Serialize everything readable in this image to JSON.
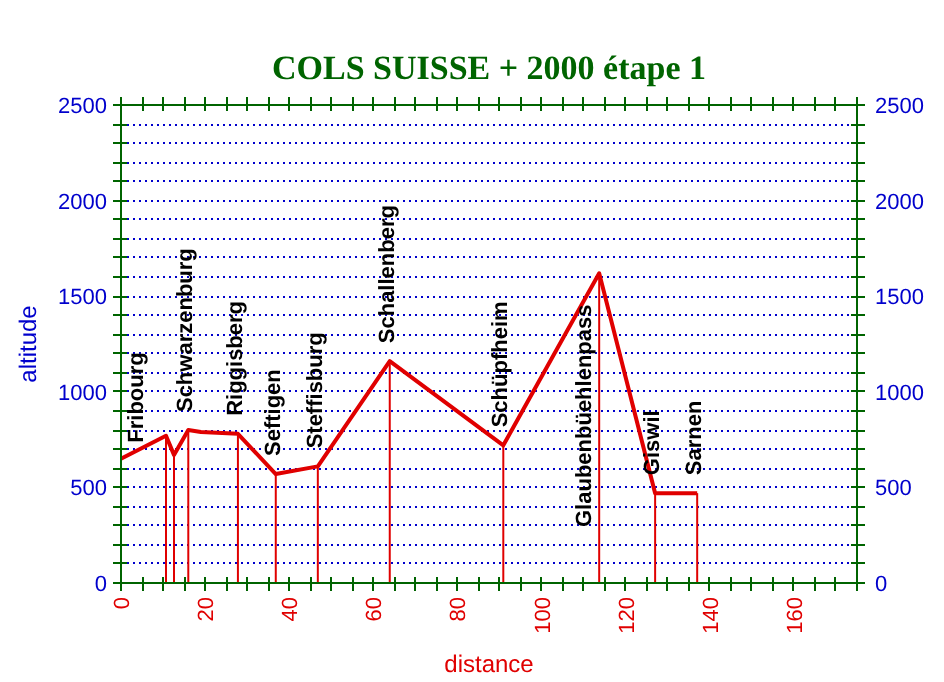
{
  "chart_data": {
    "type": "line",
    "title": "COLS SUISSE + 2000 étape 1",
    "xlabel": "distance",
    "ylabel": "altitude",
    "x": [
      0,
      10.7,
      12.6,
      16,
      19,
      27.8,
      36.8,
      46.8,
      63.9,
      90.9,
      113.7,
      127,
      137
    ],
    "series": [
      {
        "color": "#e00000",
        "values": [
          650,
          770,
          670,
          800,
          790,
          780,
          570,
          610,
          1160,
          720,
          1620,
          470,
          470
        ]
      }
    ],
    "xlim": [
      0,
      175
    ],
    "xticks": [
      0,
      {
        "value": 5,
        "label": null
      },
      {
        "value": 10,
        "label": null
      },
      {
        "value": 15,
        "label": null
      },
      20,
      {
        "value": 25,
        "label": null
      },
      {
        "value": 30,
        "label": null
      },
      {
        "value": 35,
        "label": null
      },
      40,
      {
        "value": 45,
        "label": null
      },
      {
        "value": 50,
        "label": null
      },
      {
        "value": 55,
        "label": null
      },
      60,
      {
        "value": 65,
        "label": null
      },
      {
        "value": 70,
        "label": null
      },
      {
        "value": 75,
        "label": null
      },
      80,
      {
        "value": 85,
        "label": null
      },
      {
        "value": 90,
        "label": null
      },
      {
        "value": 95,
        "label": null
      },
      100,
      {
        "value": 105,
        "label": null
      },
      {
        "value": 110,
        "label": null
      },
      {
        "value": 115,
        "label": null
      },
      120,
      {
        "value": 125,
        "label": null
      },
      {
        "value": 130,
        "label": null
      },
      {
        "value": 135,
        "label": null
      },
      140,
      {
        "value": 145,
        "label": null
      },
      {
        "value": 150,
        "label": null
      },
      {
        "value": 155,
        "label": null
      },
      160,
      {
        "value": 165,
        "label": null
      },
      {
        "value": 170,
        "label": null
      },
      {
        "value": 175,
        "label": null
      }
    ],
    "ylim": [
      0,
      2500
    ],
    "yticks": [
      0,
      {
        "value": 100,
        "label": null
      },
      {
        "value": 200,
        "label": null
      },
      {
        "value": 300,
        "label": null
      },
      {
        "value": 400,
        "label": null
      },
      500,
      {
        "value": 600,
        "label": null
      },
      {
        "value": 700,
        "label": null
      },
      {
        "value": 800,
        "label": null
      },
      {
        "value": 900,
        "label": null
      },
      1000,
      {
        "value": 1100,
        "label": null
      },
      {
        "value": 1200,
        "label": null
      },
      {
        "value": 1300,
        "label": null
      },
      {
        "value": 1400,
        "label": null
      },
      1500,
      {
        "value": 1600,
        "label": null
      },
      {
        "value": 1700,
        "label": null
      },
      {
        "value": 1800,
        "label": null
      },
      {
        "value": 1900,
        "label": null
      },
      2000,
      {
        "value": 2100,
        "label": null
      },
      {
        "value": 2200,
        "label": null
      },
      {
        "value": 2300,
        "label": null
      },
      {
        "value": 2400,
        "label": null
      },
      2500
    ],
    "y2lim": [
      0,
      2500
    ],
    "y2ticks": [
      0,
      {
        "value": 100,
        "label": null
      },
      {
        "value": 200,
        "label": null
      },
      {
        "value": 300,
        "label": null
      },
      {
        "value": 400,
        "label": null
      },
      500,
      {
        "value": 600,
        "label": null
      },
      {
        "value": 700,
        "label": null
      },
      {
        "value": 800,
        "label": null
      },
      {
        "value": 900,
        "label": null
      },
      1000,
      {
        "value": 1100,
        "label": null
      },
      {
        "value": 1200,
        "label": null
      },
      {
        "value": 1300,
        "label": null
      },
      {
        "value": 1400,
        "label": null
      },
      1500,
      {
        "value": 1600,
        "label": null
      },
      {
        "value": 1700,
        "label": null
      },
      {
        "value": 1800,
        "label": null
      },
      {
        "value": 1900,
        "label": null
      },
      2000,
      {
        "value": 2100,
        "label": null
      },
      {
        "value": 2200,
        "label": null
      },
      {
        "value": 2300,
        "label": null
      },
      {
        "value": 2400,
        "label": null
      },
      2500
    ],
    "grid": "y",
    "marker": "none",
    "line_style": "solid",
    "annotations": [
      {
        "text": "Fribourg",
        "x": 0,
        "y": 650
      }
    ],
    "ref_lines": [
      {
        "axis": "x",
        "value": 10.7,
        "label": null,
        "color": "#e00000"
      },
      {
        "axis": "x",
        "value": 12.6,
        "label": null,
        "color": "#e00000"
      },
      {
        "axis": "x",
        "value": 16,
        "label": "Schwarzenburg",
        "color": "#e00000"
      },
      {
        "axis": "x",
        "value": 27.8,
        "label": "Riggisberg",
        "color": "#e00000"
      },
      {
        "axis": "x",
        "value": 36.8,
        "label": "Seftigen",
        "color": "#e00000"
      },
      {
        "axis": "x",
        "value": 46.8,
        "label": "Steffisburg",
        "color": "#e00000"
      },
      {
        "axis": "x",
        "value": 63.9,
        "label": "Schallenberg",
        "color": "#e00000"
      },
      {
        "axis": "x",
        "value": 90.9,
        "label": "Schüpfheim",
        "color": "#e00000"
      },
      {
        "axis": "x",
        "value": 113.7,
        "label": "Glaubenbüehlenpass",
        "color": "#e00000"
      },
      {
        "axis": "x",
        "value": 127,
        "label": "Giswil",
        "color": "#e00000"
      },
      {
        "axis": "x",
        "value": 137,
        "label": "Sarnen",
        "color": "#e00000"
      }
    ]
  }
}
